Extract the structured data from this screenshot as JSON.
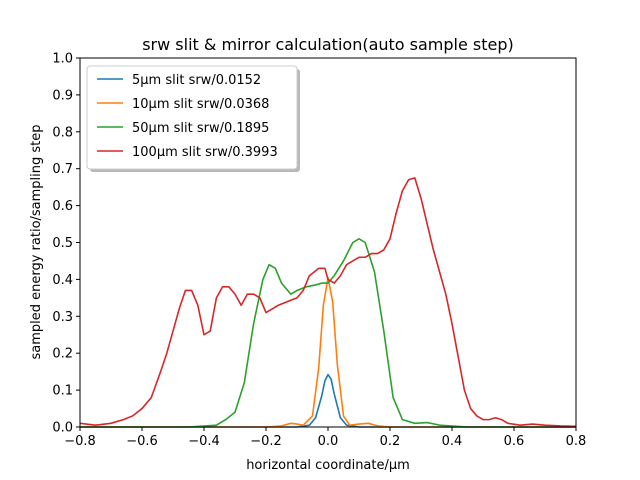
{
  "chart_data": {
    "type": "line",
    "title": "srw slit & mirror calculation(auto sample step)",
    "xlabel": "horizontal coordinate/μm",
    "ylabel": "sampled energy ratio/sampling step",
    "xlim": [
      -0.8,
      0.8
    ],
    "ylim": [
      0.0,
      1.0
    ],
    "xticks": [
      "−0.8",
      "−0.6",
      "−0.4",
      "−0.2",
      "0.0",
      "0.2",
      "0.4",
      "0.6",
      "0.8"
    ],
    "yticks": [
      "0.0",
      "0.1",
      "0.2",
      "0.3",
      "0.4",
      "0.5",
      "0.6",
      "0.7",
      "0.8",
      "0.9",
      "1.0"
    ],
    "grid": false,
    "legend_position": "top-left",
    "series": [
      {
        "name": "5μm slit srw/0.0152",
        "color": "#1f77b4",
        "points": [
          [
            -0.8,
            0
          ],
          [
            -0.1,
            0
          ],
          [
            -0.06,
            0.005
          ],
          [
            -0.04,
            0.025
          ],
          [
            -0.02,
            0.085
          ],
          [
            -0.01,
            0.125
          ],
          [
            0.0,
            0.142
          ],
          [
            0.01,
            0.13
          ],
          [
            0.02,
            0.09
          ],
          [
            0.04,
            0.025
          ],
          [
            0.06,
            0.005
          ],
          [
            0.1,
            0
          ],
          [
            0.8,
            0
          ]
        ]
      },
      {
        "name": "10μm slit srw/0.0368",
        "color": "#ff7f0e",
        "points": [
          [
            -0.8,
            0
          ],
          [
            -0.2,
            0
          ],
          [
            -0.15,
            0.003
          ],
          [
            -0.12,
            0.01
          ],
          [
            -0.1,
            0.008
          ],
          [
            -0.08,
            0.005
          ],
          [
            -0.05,
            0.03
          ],
          [
            -0.03,
            0.16
          ],
          [
            -0.015,
            0.33
          ],
          [
            0.0,
            0.405
          ],
          [
            0.015,
            0.34
          ],
          [
            0.03,
            0.17
          ],
          [
            0.05,
            0.03
          ],
          [
            0.07,
            0.005
          ],
          [
            0.1,
            0.008
          ],
          [
            0.13,
            0.01
          ],
          [
            0.16,
            0.003
          ],
          [
            0.2,
            0
          ],
          [
            0.8,
            0
          ]
        ]
      },
      {
        "name": "50μm slit srw/0.1895",
        "color": "#2ca02c",
        "points": [
          [
            -0.8,
            0
          ],
          [
            -0.45,
            0
          ],
          [
            -0.36,
            0.005
          ],
          [
            -0.33,
            0.02
          ],
          [
            -0.3,
            0.04
          ],
          [
            -0.27,
            0.12
          ],
          [
            -0.24,
            0.28
          ],
          [
            -0.21,
            0.4
          ],
          [
            -0.19,
            0.44
          ],
          [
            -0.17,
            0.43
          ],
          [
            -0.15,
            0.39
          ],
          [
            -0.12,
            0.36
          ],
          [
            -0.1,
            0.37
          ],
          [
            -0.07,
            0.38
          ],
          [
            -0.04,
            0.385
          ],
          [
            -0.02,
            0.39
          ],
          [
            0.0,
            0.39
          ],
          [
            0.02,
            0.41
          ],
          [
            0.05,
            0.45
          ],
          [
            0.08,
            0.5
          ],
          [
            0.1,
            0.51
          ],
          [
            0.12,
            0.5
          ],
          [
            0.15,
            0.42
          ],
          [
            0.18,
            0.26
          ],
          [
            0.21,
            0.08
          ],
          [
            0.24,
            0.02
          ],
          [
            0.28,
            0.01
          ],
          [
            0.32,
            0.012
          ],
          [
            0.36,
            0.005
          ],
          [
            0.45,
            0
          ],
          [
            0.8,
            0
          ]
        ]
      },
      {
        "name": "100μm slit srw/0.3993",
        "color": "#d62728",
        "points": [
          [
            -0.8,
            0.01
          ],
          [
            -0.75,
            0.005
          ],
          [
            -0.7,
            0.01
          ],
          [
            -0.66,
            0.02
          ],
          [
            -0.63,
            0.03
          ],
          [
            -0.6,
            0.05
          ],
          [
            -0.57,
            0.08
          ],
          [
            -0.54,
            0.15
          ],
          [
            -0.52,
            0.2
          ],
          [
            -0.5,
            0.26
          ],
          [
            -0.48,
            0.32
          ],
          [
            -0.46,
            0.37
          ],
          [
            -0.44,
            0.37
          ],
          [
            -0.42,
            0.33
          ],
          [
            -0.4,
            0.25
          ],
          [
            -0.38,
            0.26
          ],
          [
            -0.36,
            0.35
          ],
          [
            -0.34,
            0.38
          ],
          [
            -0.32,
            0.38
          ],
          [
            -0.3,
            0.36
          ],
          [
            -0.28,
            0.33
          ],
          [
            -0.26,
            0.36
          ],
          [
            -0.24,
            0.36
          ],
          [
            -0.22,
            0.35
          ],
          [
            -0.2,
            0.31
          ],
          [
            -0.18,
            0.32
          ],
          [
            -0.16,
            0.33
          ],
          [
            -0.13,
            0.34
          ],
          [
            -0.1,
            0.35
          ],
          [
            -0.08,
            0.37
          ],
          [
            -0.06,
            0.41
          ],
          [
            -0.03,
            0.43
          ],
          [
            -0.01,
            0.43
          ],
          [
            0.0,
            0.4
          ],
          [
            0.02,
            0.39
          ],
          [
            0.04,
            0.41
          ],
          [
            0.06,
            0.44
          ],
          [
            0.08,
            0.45
          ],
          [
            0.1,
            0.46
          ],
          [
            0.12,
            0.46
          ],
          [
            0.14,
            0.47
          ],
          [
            0.16,
            0.47
          ],
          [
            0.18,
            0.48
          ],
          [
            0.2,
            0.51
          ],
          [
            0.22,
            0.58
          ],
          [
            0.24,
            0.64
          ],
          [
            0.26,
            0.67
          ],
          [
            0.28,
            0.675
          ],
          [
            0.3,
            0.62
          ],
          [
            0.32,
            0.55
          ],
          [
            0.34,
            0.48
          ],
          [
            0.36,
            0.42
          ],
          [
            0.38,
            0.36
          ],
          [
            0.4,
            0.28
          ],
          [
            0.42,
            0.19
          ],
          [
            0.44,
            0.1
          ],
          [
            0.46,
            0.05
          ],
          [
            0.48,
            0.03
          ],
          [
            0.5,
            0.02
          ],
          [
            0.52,
            0.02
          ],
          [
            0.54,
            0.025
          ],
          [
            0.56,
            0.02
          ],
          [
            0.58,
            0.01
          ],
          [
            0.62,
            0.005
          ],
          [
            0.66,
            0.008
          ],
          [
            0.7,
            0.005
          ],
          [
            0.75,
            0.003
          ],
          [
            0.8,
            0.002
          ]
        ]
      }
    ]
  }
}
